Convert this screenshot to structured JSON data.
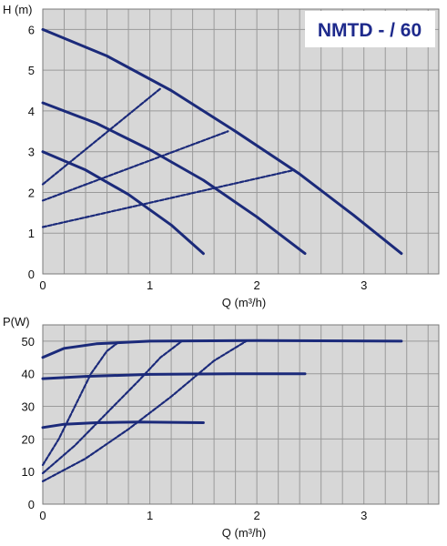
{
  "chart_data": [
    {
      "type": "line",
      "title": "NMTD - / 60",
      "xlabel": "Q (m³/h)",
      "ylabel": "H (m)",
      "xlim": [
        0,
        3.7
      ],
      "ylim": [
        0,
        6.5
      ],
      "xticks": [
        "0",
        "1",
        "2",
        "3"
      ],
      "yticks": [
        "0",
        "1",
        "2",
        "3",
        "4",
        "5",
        "6"
      ],
      "grid": true,
      "series": [
        {
          "style": "solid",
          "x": [
            0,
            0.4,
            0.8,
            1.2,
            1.5
          ],
          "y": [
            3.0,
            2.55,
            1.95,
            1.2,
            0.5
          ]
        },
        {
          "style": "solid",
          "x": [
            0,
            0.5,
            1.0,
            1.5,
            2.0,
            2.45
          ],
          "y": [
            4.2,
            3.7,
            3.05,
            2.3,
            1.4,
            0.5
          ]
        },
        {
          "style": "solid",
          "x": [
            0,
            0.6,
            1.2,
            1.8,
            2.4,
            2.9,
            3.35
          ],
          "y": [
            6.0,
            5.35,
            4.5,
            3.5,
            2.45,
            1.45,
            0.5
          ]
        },
        {
          "style": "dashed",
          "x": [
            0,
            1.1
          ],
          "y": [
            2.2,
            4.55
          ]
        },
        {
          "style": "dashed",
          "x": [
            0,
            1.73
          ],
          "y": [
            1.8,
            3.5
          ]
        },
        {
          "style": "dashed",
          "x": [
            0,
            2.35
          ],
          "y": [
            1.15,
            2.55
          ]
        }
      ],
      "colors": {
        "line": "#1b2a7a",
        "grid": "#9a9a9a",
        "plot_bg": "#d7d7d7",
        "title": "#1e2a8c",
        "title_box": "#ffffff"
      }
    },
    {
      "type": "line",
      "title": "",
      "xlabel": "Q (m³/h)",
      "ylabel": "P(W)",
      "xlim": [
        0,
        3.7
      ],
      "ylim": [
        0,
        55
      ],
      "xticks": [
        "0",
        "1",
        "2",
        "3"
      ],
      "yticks": [
        "0",
        "10",
        "20",
        "30",
        "40",
        "50"
      ],
      "grid": true,
      "series": [
        {
          "style": "solid",
          "x": [
            0,
            0.2,
            0.5,
            0.9,
            1.5
          ],
          "y": [
            23.5,
            24.5,
            25.0,
            25.2,
            25.0
          ]
        },
        {
          "style": "solid",
          "x": [
            0,
            0.4,
            1.0,
            1.8,
            2.45
          ],
          "y": [
            38.5,
            39.2,
            39.8,
            40.0,
            40.0
          ]
        },
        {
          "style": "solid",
          "x": [
            0,
            0.2,
            0.5,
            1.0,
            2.0,
            3.35
          ],
          "y": [
            45.0,
            47.8,
            49.2,
            50.0,
            50.2,
            50.0
          ]
        },
        {
          "style": "dashed",
          "x": [
            0,
            0.15,
            0.3,
            0.45,
            0.6,
            0.7
          ],
          "y": [
            12.0,
            20.0,
            30.0,
            40.0,
            47.0,
            49.5
          ]
        },
        {
          "style": "dashed",
          "x": [
            0,
            0.3,
            0.6,
            0.9,
            1.1,
            1.3
          ],
          "y": [
            9.5,
            18.0,
            28.0,
            38.0,
            45.0,
            50.0
          ]
        },
        {
          "style": "dashed",
          "x": [
            0,
            0.4,
            0.8,
            1.2,
            1.6,
            1.9
          ],
          "y": [
            7.0,
            14.0,
            23.0,
            33.0,
            44.0,
            50.0
          ]
        }
      ],
      "colors": {
        "line": "#1b2a7a",
        "grid": "#9a9a9a",
        "plot_bg": "#d7d7d7"
      }
    }
  ]
}
